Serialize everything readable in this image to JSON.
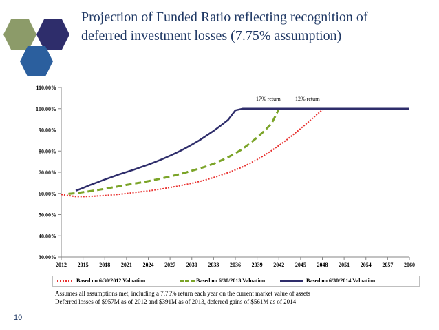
{
  "slide": {
    "title_line1": "Projection of Funded Ratio reflecting recognition of",
    "title_line2": "deferred investment losses (7.75% assumption)",
    "page_number": "10",
    "notes": [
      "Assumes all assumptions met, including a 7.75% return each year on the current market value of assets",
      "Deferred losses of $957M as of 2012 and $391M as of 2013, deferred gains of $561M as of 2014"
    ],
    "hex_colors": [
      "#8c9b69",
      "#2e2d6b",
      "#2b5f9e"
    ]
  },
  "chart_data": {
    "type": "line",
    "title": "",
    "xlabel": "",
    "ylabel": "",
    "ylim": [
      0.3,
      1.1
    ],
    "xlim": [
      2012,
      2060
    ],
    "x_ticks": [
      "2012",
      "2015",
      "2018",
      "2021",
      "2024",
      "2027",
      "2030",
      "2033",
      "2036",
      "2039",
      "2042",
      "2045",
      "2048",
      "2051",
      "2054",
      "2057",
      "2060"
    ],
    "y_ticks": [
      "30.00%",
      "40.00%",
      "50.00%",
      "60.00%",
      "70.00%",
      "80.00%",
      "90.00%",
      "100.00%",
      "110.00%"
    ],
    "grid": false,
    "legend_position": "bottom",
    "annotations": [
      "17% return",
      "12% return"
    ],
    "series": [
      {
        "name": "Based on 6/30/2012 Valuation",
        "color": "#e8302e",
        "style": "dotted",
        "x": [
          2012,
          2013,
          2014,
          2015,
          2016,
          2017,
          2018,
          2019,
          2020,
          2021,
          2022,
          2023,
          2024,
          2025,
          2026,
          2027,
          2028,
          2029,
          2030,
          2031,
          2032,
          2033,
          2034,
          2035,
          2036,
          2037,
          2038,
          2039,
          2040,
          2041,
          2042,
          2043,
          2044,
          2045,
          2046,
          2047,
          2048,
          2049,
          2050,
          2051,
          2052,
          2053,
          2054,
          2055,
          2056,
          2057,
          2058,
          2059,
          2060
        ],
        "values": [
          0.595,
          0.59,
          0.585,
          0.585,
          0.586,
          0.588,
          0.59,
          0.593,
          0.596,
          0.6,
          0.604,
          0.608,
          0.612,
          0.617,
          0.622,
          0.628,
          0.634,
          0.641,
          0.648,
          0.656,
          0.665,
          0.675,
          0.686,
          0.698,
          0.711,
          0.725,
          0.742,
          0.76,
          0.78,
          0.802,
          0.826,
          0.851,
          0.878,
          0.906,
          0.935,
          0.965,
          0.995,
          1.0,
          1.0,
          1.0,
          1.0,
          1.0,
          1.0,
          1.0,
          1.0,
          1.0,
          1.0,
          1.0,
          1.0
        ]
      },
      {
        "name": "Based on 6/30/2013 Valuation",
        "color": "#7ba428",
        "style": "dashed",
        "x": [
          2013,
          2014,
          2015,
          2016,
          2017,
          2018,
          2019,
          2020,
          2021,
          2022,
          2023,
          2024,
          2025,
          2026,
          2027,
          2028,
          2029,
          2030,
          2031,
          2032,
          2033,
          2034,
          2035,
          2036,
          2037,
          2038,
          2039,
          2040,
          2041,
          2042
        ],
        "values": [
          0.598,
          0.601,
          0.606,
          0.611,
          0.616,
          0.622,
          0.628,
          0.634,
          0.64,
          0.646,
          0.652,
          0.658,
          0.665,
          0.672,
          0.68,
          0.688,
          0.697,
          0.707,
          0.717,
          0.728,
          0.74,
          0.755,
          0.771,
          0.789,
          0.81,
          0.836,
          0.864,
          0.895,
          0.93,
          0.998
        ]
      },
      {
        "name": "Based on 6/30/2014 Valuation",
        "color": "#2e2d6b",
        "style": "solid",
        "x": [
          2014,
          2015,
          2016,
          2017,
          2018,
          2019,
          2020,
          2021,
          2022,
          2023,
          2024,
          2025,
          2026,
          2027,
          2028,
          2029,
          2030,
          2031,
          2032,
          2033,
          2034,
          2035,
          2036,
          2037,
          2038,
          2039,
          2040,
          2041,
          2042,
          2043,
          2044,
          2045,
          2046,
          2047,
          2048,
          2049,
          2050,
          2051,
          2052,
          2053,
          2054,
          2055,
          2056,
          2057,
          2058,
          2059,
          2060
        ],
        "values": [
          0.613,
          0.626,
          0.64,
          0.653,
          0.666,
          0.678,
          0.69,
          0.701,
          0.712,
          0.724,
          0.736,
          0.749,
          0.763,
          0.778,
          0.794,
          0.811,
          0.83,
          0.85,
          0.872,
          0.895,
          0.92,
          0.947,
          0.992,
          1.0,
          1.0,
          1.0,
          1.0,
          1.0,
          1.0,
          1.0,
          1.0,
          1.0,
          1.0,
          1.0,
          1.0,
          1.0,
          1.0,
          1.0,
          1.0,
          1.0,
          1.0,
          1.0,
          1.0,
          1.0,
          1.0,
          1.0,
          1.0
        ]
      }
    ]
  }
}
